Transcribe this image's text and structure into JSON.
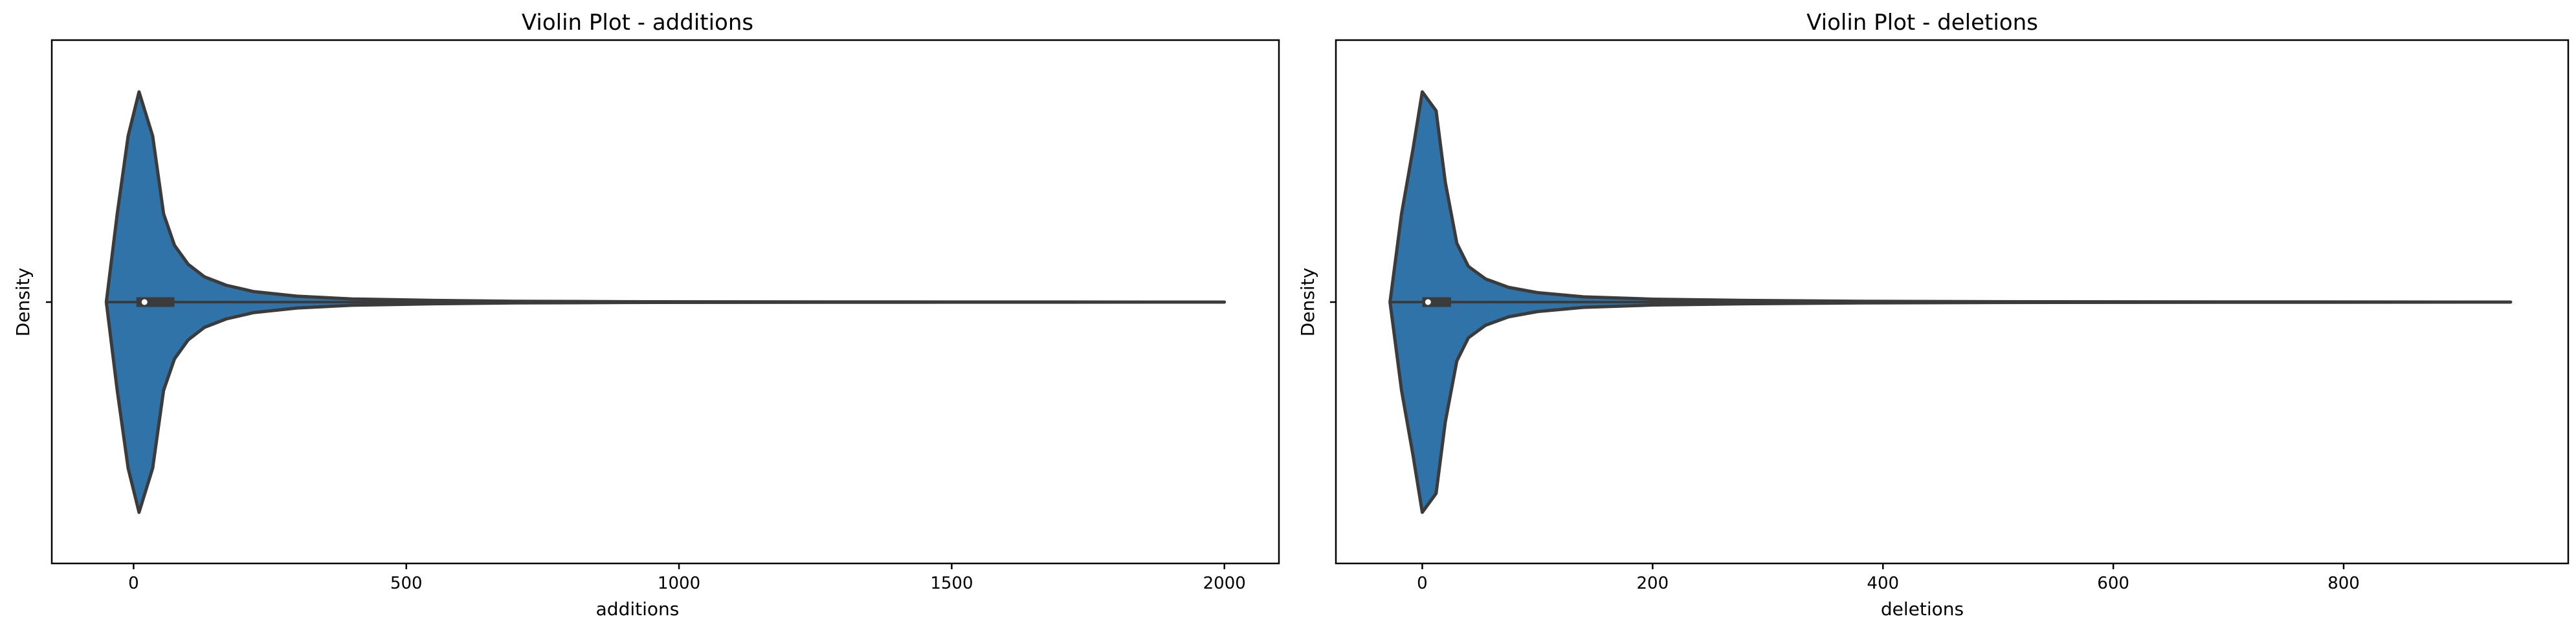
{
  "chart_data": [
    {
      "type": "violin",
      "title": "Violin Plot - additions",
      "xlabel": "additions",
      "ylabel": "Density",
      "xlim": [
        -150,
        2100
      ],
      "xticks": [
        0,
        500,
        1000,
        1500,
        2000
      ],
      "xtick_labels": [
        "0",
        "500",
        "1000",
        "1500",
        "2000"
      ],
      "color": "#2f73a8",
      "density_profile": [
        {
          "x": -50,
          "w": 0.0
        },
        {
          "x": -30,
          "w": 0.42
        },
        {
          "x": -10,
          "w": 0.79
        },
        {
          "x": 10,
          "w": 1.0
        },
        {
          "x": 35,
          "w": 0.79
        },
        {
          "x": 55,
          "w": 0.42
        },
        {
          "x": 75,
          "w": 0.27
        },
        {
          "x": 100,
          "w": 0.18
        },
        {
          "x": 130,
          "w": 0.12
        },
        {
          "x": 170,
          "w": 0.08
        },
        {
          "x": 220,
          "w": 0.05
        },
        {
          "x": 300,
          "w": 0.028
        },
        {
          "x": 400,
          "w": 0.015
        },
        {
          "x": 550,
          "w": 0.008
        },
        {
          "x": 700,
          "w": 0.004
        },
        {
          "x": 900,
          "w": 0.002
        },
        {
          "x": 1100,
          "w": 0.001
        },
        {
          "x": 1500,
          "w": 0.0005
        },
        {
          "x": 2000,
          "w": 0.0
        }
      ],
      "box": {
        "whisker_low": 0,
        "q1": 5,
        "median": 20,
        "q3": 75,
        "whisker_high": 165
      },
      "max": 2000
    },
    {
      "type": "violin",
      "title": "Violin Plot - deletions",
      "xlabel": "deletions",
      "ylabel": "Density",
      "xlim": [
        -75,
        995
      ],
      "xticks": [
        0,
        200,
        400,
        600,
        800
      ],
      "xtick_labels": [
        "0",
        "200",
        "400",
        "600",
        "800"
      ],
      "color": "#2f73a8",
      "density_profile": [
        {
          "x": -28,
          "w": 0.0
        },
        {
          "x": -18,
          "w": 0.42
        },
        {
          "x": -8,
          "w": 0.73
        },
        {
          "x": 0,
          "w": 1.0
        },
        {
          "x": 12,
          "w": 0.91
        },
        {
          "x": 20,
          "w": 0.57
        },
        {
          "x": 30,
          "w": 0.28
        },
        {
          "x": 40,
          "w": 0.17
        },
        {
          "x": 55,
          "w": 0.11
        },
        {
          "x": 75,
          "w": 0.07
        },
        {
          "x": 100,
          "w": 0.045
        },
        {
          "x": 140,
          "w": 0.025
        },
        {
          "x": 200,
          "w": 0.014
        },
        {
          "x": 280,
          "w": 0.008
        },
        {
          "x": 380,
          "w": 0.004
        },
        {
          "x": 500,
          "w": 0.002
        },
        {
          "x": 700,
          "w": 0.0008
        },
        {
          "x": 945,
          "w": 0.0
        }
      ],
      "box": {
        "whisker_low": 0,
        "q1": 0,
        "median": 5,
        "q3": 25,
        "whisker_high": 60
      },
      "max": 945
    }
  ]
}
